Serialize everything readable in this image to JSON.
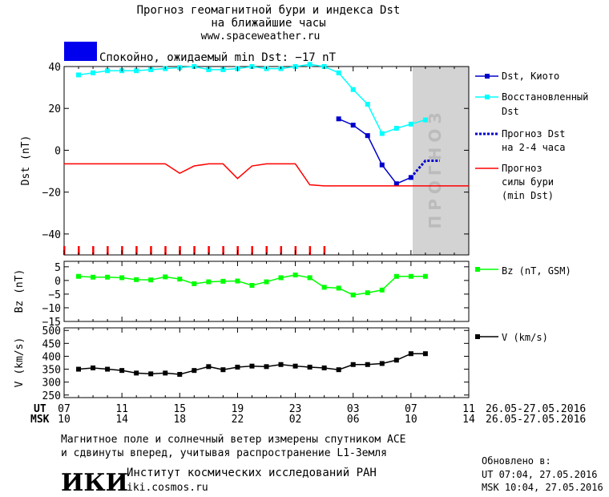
{
  "header": {
    "title_line1": "Прогноз геомагнитной бури и индекса Dst",
    "title_line2": "на ближайшие часы",
    "site": "www.spaceweather.ru",
    "status_text": "Спокойно, ожидаемый min Dst: −17 nT",
    "status_color": "#0000ee"
  },
  "colors": {
    "dst_kyoto": "#0000cc",
    "dst_restored": "#00ffff",
    "dst_forecast": "#0000cc",
    "storm_forecast": "#ff0000",
    "bz": "#00ff00",
    "v": "#000000",
    "forecast_zone": "#d3d3d3"
  },
  "legend": {
    "dst_kyoto": "Dst, Киото",
    "restored_1": "Восстановленный",
    "restored_2": "Dst",
    "forecast_1": "Прогноз Dst",
    "forecast_2": "на 2-4 часа",
    "storm_1": "Прогноз",
    "storm_2": "силы бури",
    "storm_3": "(min Dst)",
    "bz": "Bz (nT, GSM)",
    "v": "V (km/s)"
  },
  "forecast_zone_label": "ПРОГНОЗ",
  "axes": {
    "ut_label": "UT",
    "msk_label": "MSK",
    "ut_ticks": [
      "07",
      "11",
      "15",
      "19",
      "23",
      "03",
      "07",
      "11"
    ],
    "msk_ticks": [
      "10",
      "14",
      "18",
      "22",
      "02",
      "06",
      "10",
      "14"
    ],
    "ut_dates": "26.05-27.05.2016",
    "msk_dates": "26.05-27.05.2016"
  },
  "chart_data": [
    {
      "type": "line",
      "panel": "dst",
      "ylabel": "Dst (nT)",
      "xlim": [
        0,
        28
      ],
      "ylim": [
        -50,
        40
      ],
      "yticks": [
        40,
        20,
        0,
        -20,
        -40
      ],
      "forecast_zone_x": [
        24,
        28
      ],
      "series": [
        {
          "name": "Dst, Киото",
          "x": [
            19,
            20,
            21,
            22,
            23,
            24
          ],
          "values": [
            15,
            12,
            7,
            -7,
            -16,
            -13
          ]
        },
        {
          "name": "Восстановленный Dst",
          "x": [
            1,
            2,
            3,
            4,
            5,
            6,
            7,
            8,
            9,
            10,
            11,
            12,
            13,
            14,
            15,
            16,
            17,
            18,
            19,
            20,
            21,
            22,
            23,
            24,
            25
          ],
          "values": [
            36,
            37,
            38,
            38,
            38,
            38.5,
            39,
            39.5,
            40,
            38.5,
            38.5,
            39,
            40,
            39,
            39,
            40,
            41,
            40,
            37,
            29,
            22,
            8,
            10.5,
            12.5,
            14.5
          ]
        },
        {
          "name": "Прогноз Dst на 2-4 часа",
          "x": [
            24,
            25,
            26
          ],
          "values": [
            -13,
            -5,
            -5
          ]
        },
        {
          "name": "Прогноз силы бури (min Dst)",
          "x": [
            0,
            1,
            2,
            3,
            4,
            5,
            6,
            7,
            8,
            9,
            10,
            11,
            12,
            13,
            14,
            15,
            16,
            17,
            18,
            19,
            20,
            21,
            22,
            23,
            24,
            25,
            26,
            27,
            28
          ],
          "values": [
            -6.5,
            -6.5,
            -6.5,
            -6.5,
            -6.5,
            -6.5,
            -6.5,
            -6.5,
            -11,
            -7.5,
            -6.5,
            -6.5,
            -13.5,
            -7.5,
            -6.5,
            -6.5,
            -6.5,
            -16.5,
            -17,
            -17,
            -17,
            -17,
            -17,
            -17,
            -17,
            -17,
            -17,
            -17,
            -17
          ]
        }
      ],
      "quiet_markers_x": [
        0,
        1,
        2,
        3,
        4,
        5,
        6,
        7,
        8,
        9,
        10,
        11,
        12,
        13,
        14,
        15,
        16,
        17,
        18
      ]
    },
    {
      "type": "line",
      "panel": "bz",
      "ylabel": "Bz (nT)",
      "xlim": [
        0,
        28
      ],
      "ylim": [
        -15,
        7
      ],
      "yticks": [
        5,
        0,
        -5,
        -10,
        -15
      ],
      "series": [
        {
          "name": "Bz (nT, GSM)",
          "x": [
            1,
            2,
            3,
            4,
            5,
            6,
            7,
            8,
            9,
            10,
            11,
            12,
            13,
            14,
            15,
            16,
            17,
            18,
            19,
            20,
            21,
            22,
            23,
            24,
            25
          ],
          "values": [
            1.5,
            1.2,
            1.2,
            1,
            0.3,
            0.2,
            1.3,
            0.5,
            -1.2,
            -0.5,
            -0.3,
            -0.2,
            -1.8,
            -0.5,
            1,
            2,
            1,
            -2.5,
            -2.8,
            -5.3,
            -4.5,
            -3.5,
            1.5,
            1.5,
            1.5
          ]
        }
      ]
    },
    {
      "type": "line",
      "panel": "v",
      "ylabel": "V (km/s)",
      "xlim": [
        0,
        28
      ],
      "ylim": [
        240,
        510
      ],
      "yticks": [
        500,
        450,
        400,
        350,
        300,
        250
      ],
      "series": [
        {
          "name": "V (km/s)",
          "x": [
            1,
            2,
            3,
            4,
            5,
            6,
            7,
            8,
            9,
            10,
            11,
            12,
            13,
            14,
            15,
            16,
            17,
            18,
            19,
            20,
            21,
            22,
            23,
            24,
            25
          ],
          "values": [
            350,
            355,
            350,
            345,
            335,
            332,
            335,
            330,
            345,
            360,
            348,
            358,
            362,
            360,
            368,
            362,
            358,
            355,
            348,
            368,
            368,
            372,
            385,
            410,
            410
          ]
        }
      ]
    }
  ],
  "footer": {
    "note_1": "Магнитное поле и солнечный ветер измерены спутником ACE",
    "note_2": "и сдвинуты вперед, учитывая распространение L1-Земля",
    "logo_text": "ИКИ",
    "institute": "Институт космических исследований РАН",
    "institute_url": "iki.cosmos.ru",
    "updated_label": "Обновлено в:",
    "updated_ut": "UT  07:04, 27.05.2016",
    "updated_msk": "MSK 10:04, 27.05.2016"
  }
}
